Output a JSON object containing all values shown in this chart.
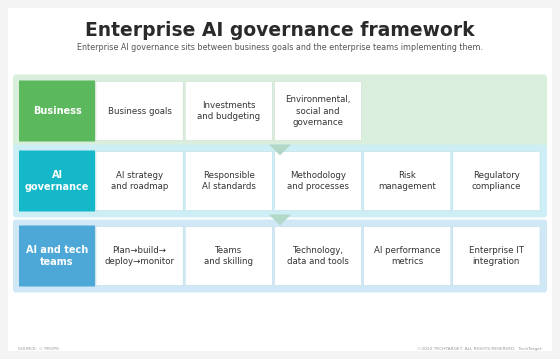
{
  "title": "Enterprise AI governance framework",
  "subtitle": "Enterprise AI governance sits between business goals and the enterprise teams implementing them.",
  "background_color": "#f4f4f4",
  "inner_bg": "#ffffff",
  "rows": [
    {
      "label": "Business",
      "label_bg": "#5cb85c",
      "label_color": "#ffffff",
      "row_bg": "#daeede",
      "cell_bg": "#ffffff",
      "cells": [
        "Business goals",
        "Investments\nand budgeting",
        "Environmental,\nsocial and\ngovernance"
      ],
      "num_active": 3
    },
    {
      "label": "AI\ngovernance",
      "label_bg": "#14b8c8",
      "label_color": "#ffffff",
      "row_bg": "#cceef4",
      "cell_bg": "#ffffff",
      "cells": [
        "AI strategy\nand roadmap",
        "Responsible\nAI standards",
        "Methodology\nand processes",
        "Risk\nmanagement",
        "Regulatory\ncompliance"
      ],
      "num_active": 5
    },
    {
      "label": "AI and tech\nteams",
      "label_bg": "#4da8d8",
      "label_color": "#ffffff",
      "row_bg": "#d0e8f5",
      "cell_bg": "#ffffff",
      "cells": [
        "Plan→build→\ndeploy→monitor",
        "Teams\nand skilling",
        "Technology,\ndata and tools",
        "AI performance\nmetrics",
        "Enterprise IT\nintegration"
      ],
      "num_active": 5
    }
  ],
  "arrow_color": "#b2d8c8",
  "footer_left": "SOURCE: © PROPS",
  "footer_right": "©2022 TECHTARGET. ALL RIGHTS RESERVED.  TechTarget"
}
